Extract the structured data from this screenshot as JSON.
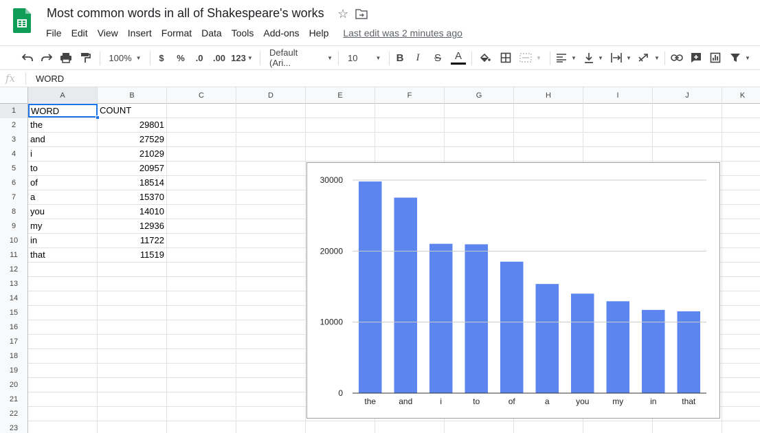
{
  "doc": {
    "title": "Most common words in all of Shakespeare's works",
    "last_edit": "Last edit was 2 minutes ago"
  },
  "icons": {
    "app_logo": "google-sheets-logo",
    "star": "star-icon",
    "move": "move-to-folder-icon"
  },
  "menu": [
    "File",
    "Edit",
    "View",
    "Insert",
    "Format",
    "Data",
    "Tools",
    "Add-ons",
    "Help"
  ],
  "toolbar": {
    "zoom": "100%",
    "currency": "$",
    "percent": "%",
    "decrease_decimal": ".0",
    "increase_decimal": ".00",
    "more_formats": "123",
    "font": "Default (Ari...",
    "font_size": "10",
    "bold": "B",
    "italic": "I",
    "strikethrough": "S",
    "text_color_letter": "A"
  },
  "formula_bar": {
    "fx": "fx",
    "value": "WORD"
  },
  "columns": [
    "A",
    "B",
    "C",
    "D",
    "E",
    "F",
    "G",
    "H",
    "I",
    "J",
    "K"
  ],
  "row_numbers": [
    "1",
    "2",
    "3",
    "4",
    "5",
    "6",
    "7",
    "8",
    "9",
    "10",
    "11",
    "12",
    "13",
    "14",
    "15",
    "16",
    "17",
    "18",
    "19",
    "20",
    "21",
    "22",
    "23"
  ],
  "sheet": {
    "header": [
      "WORD",
      "COUNT"
    ],
    "rows": [
      [
        "the",
        "29801"
      ],
      [
        "and",
        "27529"
      ],
      [
        "i",
        "21029"
      ],
      [
        "to",
        "20957"
      ],
      [
        "of",
        "18514"
      ],
      [
        "a",
        "15370"
      ],
      [
        "you",
        "14010"
      ],
      [
        "my",
        "12936"
      ],
      [
        "in",
        "11722"
      ],
      [
        "that",
        "11519"
      ]
    ]
  },
  "colors": {
    "bar": "#5c85f0",
    "selection": "#1a73e8",
    "logo_green": "#0f9d58"
  },
  "chart_data": {
    "type": "bar",
    "categories": [
      "the",
      "and",
      "i",
      "to",
      "of",
      "a",
      "you",
      "my",
      "in",
      "that"
    ],
    "values": [
      29801,
      27529,
      21029,
      20957,
      18514,
      15370,
      14010,
      12936,
      11722,
      11519
    ],
    "title": "",
    "xlabel": "",
    "ylabel": "",
    "ylim": [
      0,
      30000
    ],
    "yticks": [
      "0",
      "10000",
      "20000",
      "30000"
    ],
    "grid": true,
    "legend": "none"
  }
}
